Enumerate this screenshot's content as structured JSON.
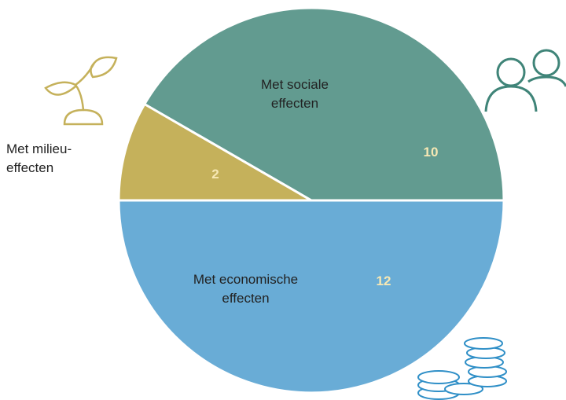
{
  "chart_data": {
    "type": "pie",
    "categories": [
      "Met sociale effecten",
      "Met milieu-effecten",
      "Met economische effecten"
    ],
    "values": [
      10,
      2,
      12
    ],
    "colors": [
      "#629b90",
      "#c5b15b",
      "#69acd6"
    ]
  }
}
